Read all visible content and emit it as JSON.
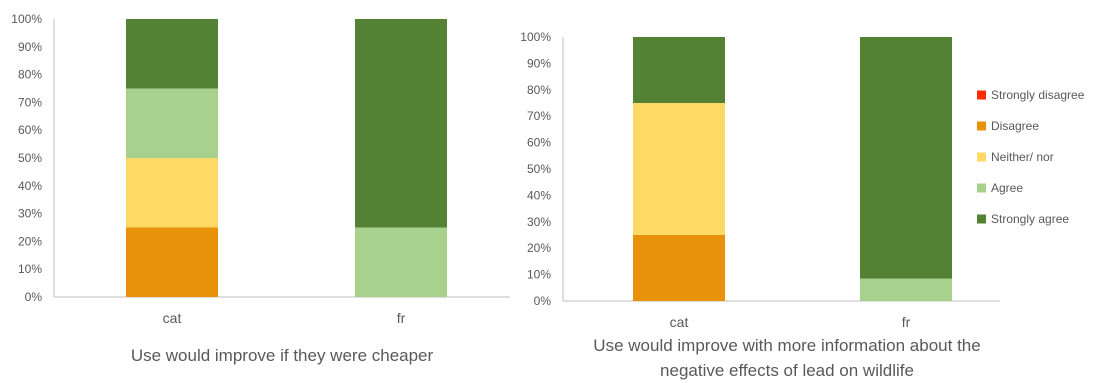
{
  "chart_data": [
    {
      "type": "bar",
      "stacked": true,
      "percent": true,
      "categories": [
        "cat",
        "fr"
      ],
      "y_ticks": [
        "0%",
        "10%",
        "20%",
        "30%",
        "40%",
        "50%",
        "60%",
        "70%",
        "80%",
        "90%",
        "100%"
      ],
      "ylim": [
        0,
        100
      ],
      "series": [
        {
          "name": "Strongly disagree",
          "color": "#ff2a00",
          "values": [
            0,
            0
          ]
        },
        {
          "name": "Disagree",
          "color": "#e8920a",
          "values": [
            25,
            0
          ]
        },
        {
          "name": "Neither/ nor",
          "color": "#ffd966",
          "values": [
            25,
            0
          ]
        },
        {
          "name": "Agree",
          "color": "#a9d18e",
          "values": [
            25,
            25
          ]
        },
        {
          "name": "Strongly agree",
          "color": "#548235",
          "values": [
            25,
            75
          ]
        }
      ],
      "caption": [
        "Use would improve if they were cheaper"
      ],
      "legend": false
    },
    {
      "type": "bar",
      "stacked": true,
      "percent": true,
      "categories": [
        "cat",
        "fr"
      ],
      "y_ticks": [
        "0%",
        "10%",
        "20%",
        "30%",
        "40%",
        "50%",
        "60%",
        "70%",
        "80%",
        "90%",
        "100%"
      ],
      "ylim": [
        0,
        100
      ],
      "series": [
        {
          "name": "Strongly disagree",
          "color": "#ff2a00",
          "values": [
            0,
            0
          ]
        },
        {
          "name": "Disagree",
          "color": "#e8920a",
          "values": [
            25,
            0
          ]
        },
        {
          "name": "Neither/ nor",
          "color": "#ffd966",
          "values": [
            50,
            0
          ]
        },
        {
          "name": "Agree",
          "color": "#a9d18e",
          "values": [
            0,
            8.5
          ]
        },
        {
          "name": "Strongly agree",
          "color": "#548235",
          "values": [
            25,
            91.5
          ]
        }
      ],
      "caption": [
        "Use would improve with more information about the",
        "negative effects of lead on wildlife"
      ],
      "legend": true,
      "legend_position": "right"
    }
  ]
}
